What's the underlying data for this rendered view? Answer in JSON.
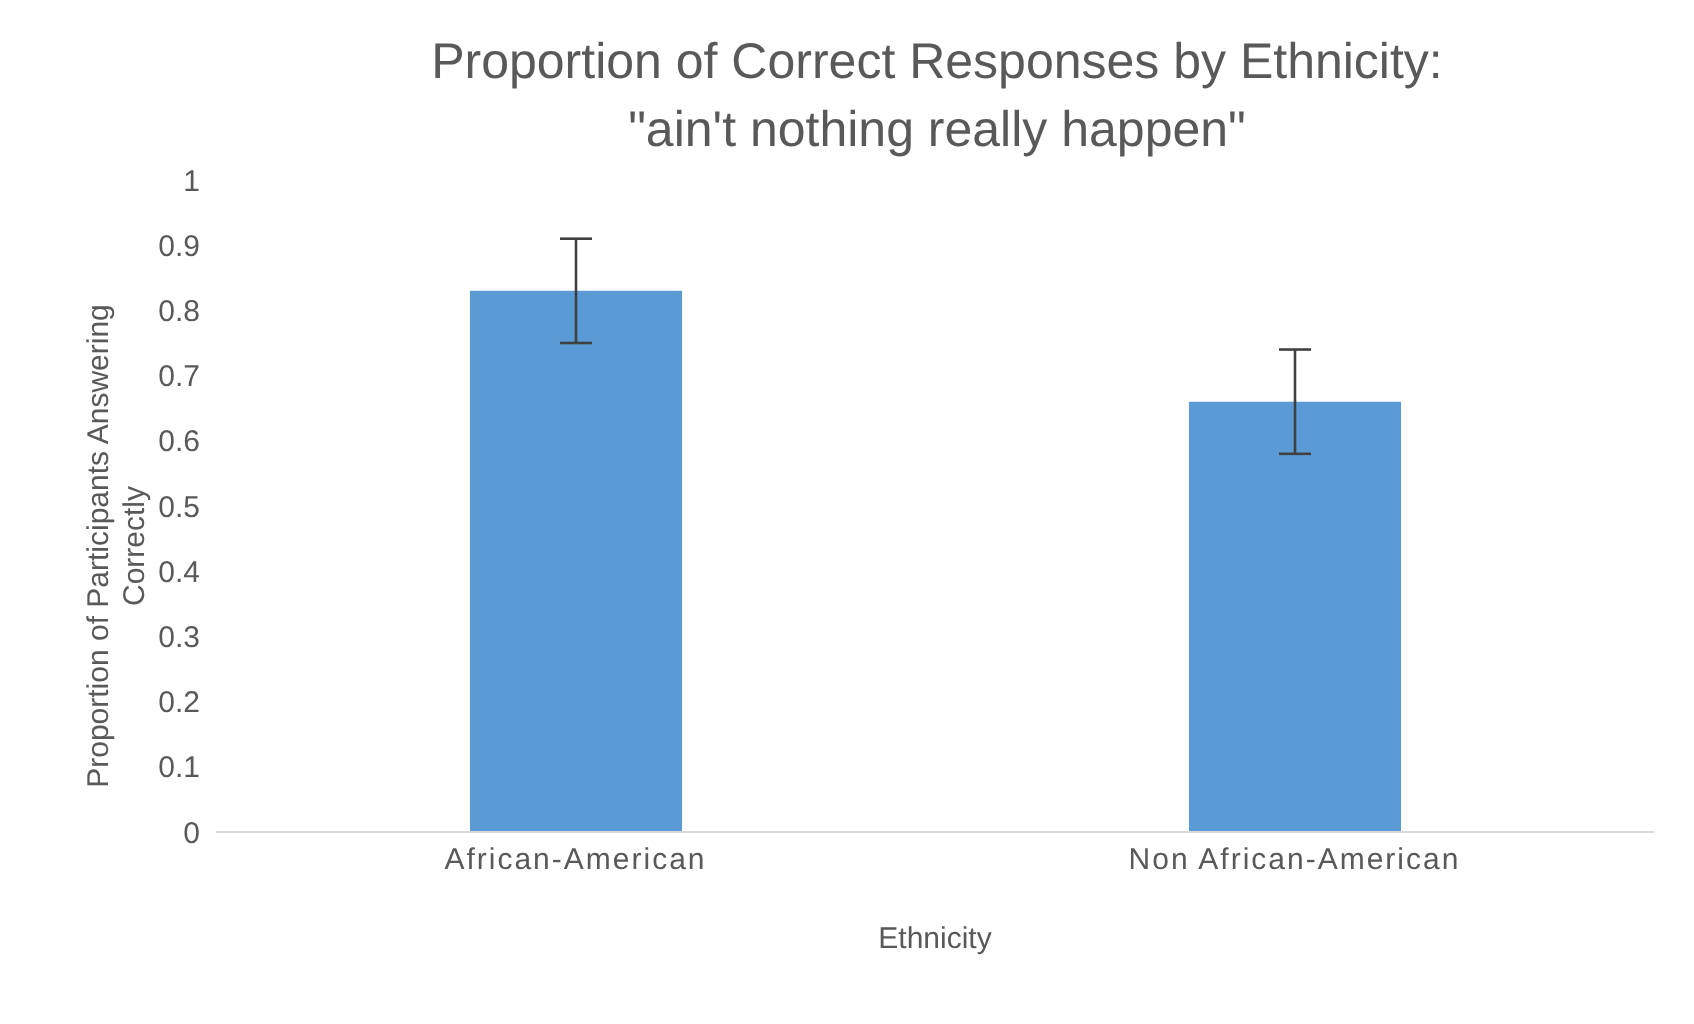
{
  "chart_data": {
    "type": "bar",
    "title": "Proportion of Correct Responses by Ethnicity:\n\"ain't nothing really happen\"",
    "xlabel": "Ethnicity",
    "ylabel": "Proportion of Participants Answering Correctly",
    "categories": [
      "African-American",
      "Non African-American"
    ],
    "values": [
      0.83,
      0.66
    ],
    "errors": [
      0.08,
      0.08
    ],
    "color": "#5b9bd5",
    "ylim": [
      0,
      1
    ],
    "yticks": [
      0,
      0.1,
      0.2,
      0.3,
      0.4,
      0.5,
      0.6,
      0.7,
      0.8,
      0.9,
      1
    ],
    "grid": false,
    "legend": false
  }
}
